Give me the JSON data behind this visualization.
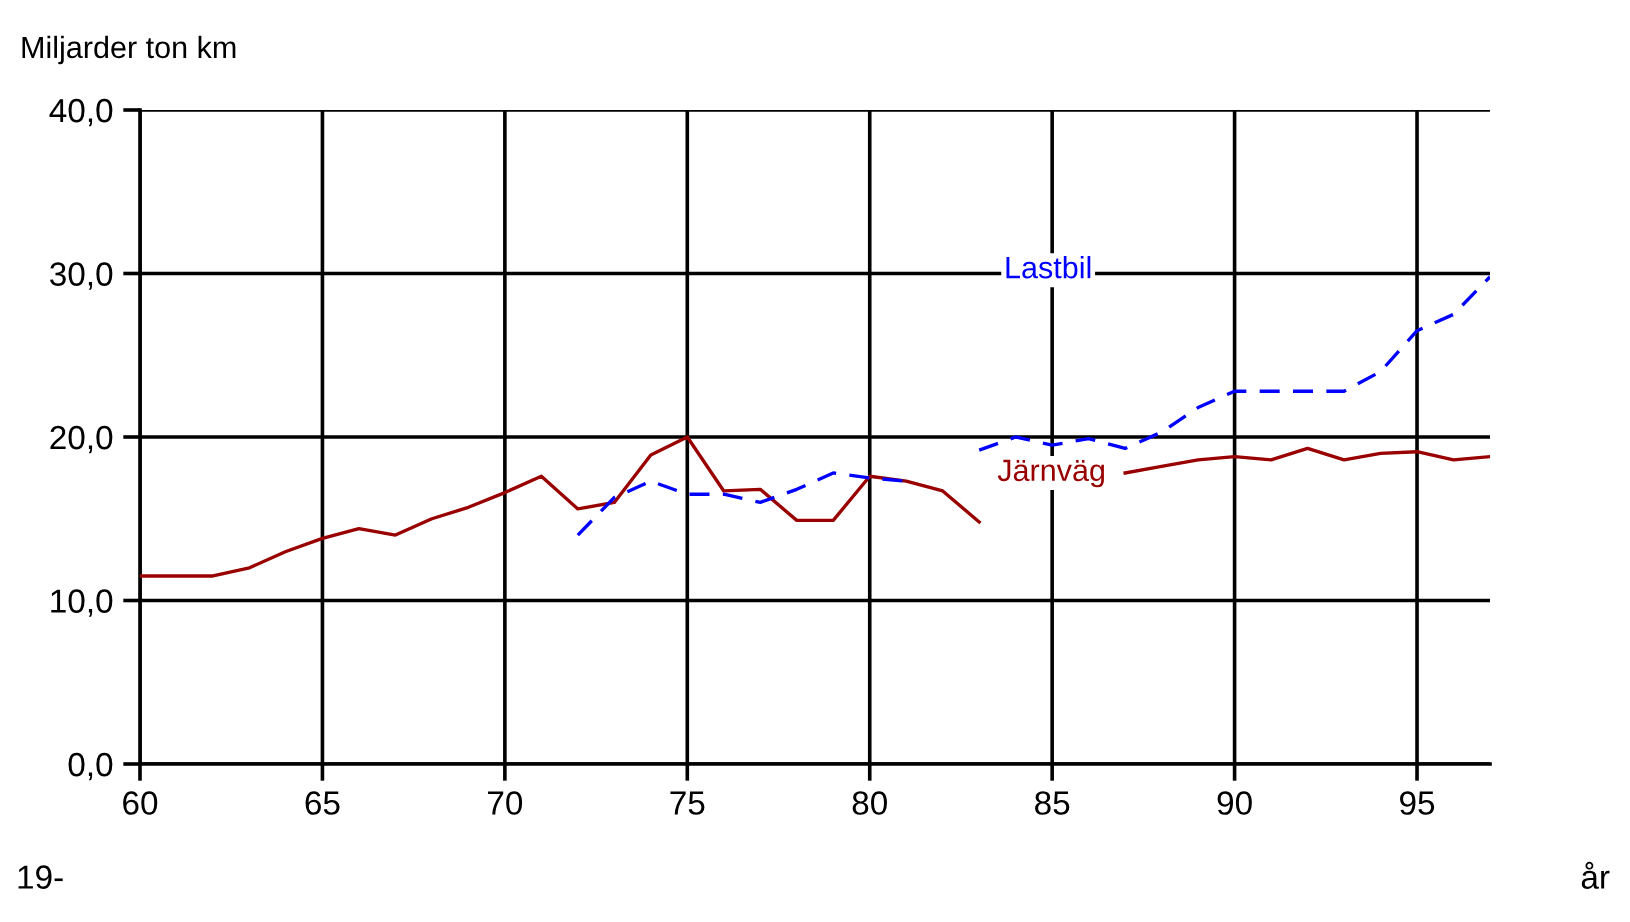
{
  "chart_data": {
    "type": "line",
    "ylabel": "Miljarder ton km",
    "xlabel": "år",
    "annotations": [
      "19-"
    ],
    "x": [
      60,
      61,
      62,
      63,
      64,
      65,
      66,
      67,
      68,
      69,
      70,
      71,
      72,
      73,
      74,
      75,
      76,
      77,
      78,
      79,
      80,
      81,
      82,
      83,
      84,
      85,
      86,
      87,
      88,
      89,
      90,
      91,
      92,
      93,
      94,
      95,
      96,
      97
    ],
    "series": [
      {
        "name": "Järnväg",
        "color": "#990000",
        "line_style": "solid",
        "values": [
          11.5,
          11.5,
          11.5,
          12.0,
          13.0,
          13.8,
          14.4,
          14.0,
          15.0,
          15.7,
          16.6,
          17.6,
          15.6,
          16.0,
          18.9,
          20.0,
          16.7,
          16.8,
          14.9,
          14.9,
          17.6,
          17.3,
          16.7,
          14.8,
          null,
          null,
          null,
          17.8,
          18.2,
          18.6,
          18.8,
          18.6,
          19.3,
          18.6,
          19.0,
          19.1,
          18.6,
          18.8
        ]
      },
      {
        "name": "Lastbil",
        "color": "#0000ff",
        "line_style": "dashed",
        "values": [
          null,
          null,
          null,
          null,
          null,
          null,
          null,
          null,
          null,
          null,
          null,
          null,
          14.0,
          16.3,
          17.3,
          16.5,
          16.5,
          16.0,
          16.8,
          17.8,
          17.5,
          17.3,
          null,
          19.2,
          20.0,
          19.5,
          19.9,
          19.3,
          20.3,
          21.8,
          22.8,
          22.8,
          22.8,
          22.8,
          24.0,
          26.5,
          27.5,
          29.8
        ]
      }
    ],
    "xlim": [
      60,
      97
    ],
    "xticks": [
      60,
      65,
      70,
      75,
      80,
      85,
      90,
      95
    ],
    "ylim": [
      0,
      40
    ],
    "yticks": [
      {
        "value": 0,
        "label": "0,0"
      },
      {
        "value": 10,
        "label": "10,0"
      },
      {
        "value": 20,
        "label": "20,0"
      },
      {
        "value": 30,
        "label": "30,0"
      },
      {
        "value": 40,
        "label": "40,0"
      }
    ],
    "grid": true,
    "marker": "none"
  }
}
